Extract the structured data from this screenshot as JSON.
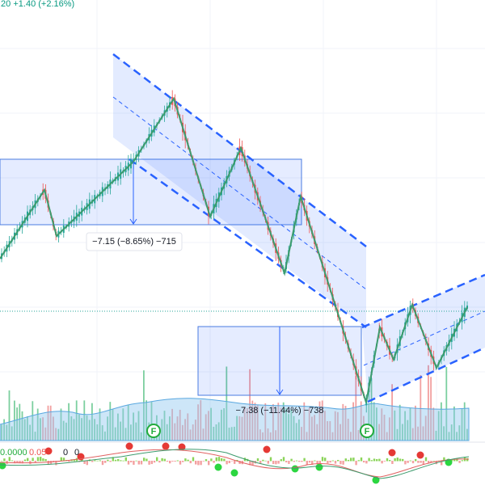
{
  "header": {
    "price_change": ".20  +1.40 (+2.16%)"
  },
  "measurements": [
    {
      "label": "−7.15 (−8.65%) −715"
    },
    {
      "label": "−7.38 (−11.44%) −738"
    }
  ],
  "markers": [
    "F",
    "F"
  ],
  "indicator": {
    "labels": [
      "0.0000",
      "0.05",
      "0",
      "0"
    ]
  }
}
